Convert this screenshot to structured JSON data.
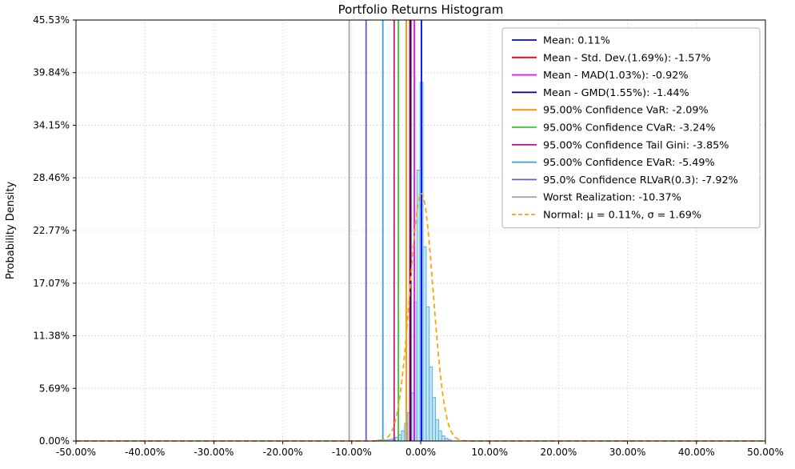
{
  "chart_data": {
    "type": "bar",
    "title": "Portfolio Returns Histogram",
    "xlabel": "",
    "ylabel": "Probability Density",
    "xlim": [
      -50,
      50
    ],
    "ylim": [
      0,
      45.53
    ],
    "grid": "dotted",
    "legend_position": "upper right",
    "x_ticks": {
      "values": [
        -50,
        -40,
        -30,
        -20,
        -10,
        0,
        10,
        20,
        30,
        40,
        50
      ],
      "labels": [
        "-50.00%",
        "-40.00%",
        "-30.00%",
        "-20.00%",
        "-10.00%",
        "0.00%",
        "10.00%",
        "20.00%",
        "30.00%",
        "40.00%",
        "50.00%"
      ]
    },
    "y_ticks": {
      "values": [
        0.0,
        5.69,
        11.38,
        17.07,
        22.77,
        28.46,
        34.15,
        39.84,
        45.53
      ],
      "labels": [
        "0.00%",
        "5.69%",
        "11.38%",
        "17.07%",
        "22.77%",
        "28.46%",
        "34.15%",
        "39.84%",
        "45.53%"
      ]
    },
    "histogram": {
      "fill_color": "#b5dff2",
      "edge_color": "#5fb4d6",
      "bin_width": 0.45,
      "centers": [
        -6.175,
        -5.725,
        -5.275,
        -4.825,
        -4.375,
        -3.925,
        -3.475,
        -3.025,
        -2.575,
        -2.125,
        -1.675,
        -1.225,
        -0.775,
        -0.325,
        0.125,
        0.575,
        1.025,
        1.475,
        1.925,
        2.375,
        2.825,
        3.275,
        3.725,
        4.175
      ],
      "heights": [
        0.08,
        0.12,
        0.08,
        0.12,
        0.18,
        0.25,
        0.4,
        0.65,
        1.1,
        1.9,
        3.1,
        5.2,
        15.0,
        29.3,
        38.8,
        21.0,
        14.5,
        8.0,
        4.7,
        2.3,
        1.1,
        0.55,
        0.28,
        0.14
      ]
    },
    "vlines": [
      {
        "name": "mean",
        "label": "Mean: 0.11%",
        "x": 0.11,
        "color": "#0000ff"
      },
      {
        "name": "mean-minus-std-dev",
        "label": "Mean - Std. Dev.(1.69%): -1.57%",
        "x": -1.57,
        "color": "#ff0000"
      },
      {
        "name": "mean-minus-mad",
        "label": "Mean - MAD(1.03%): -0.92%",
        "x": -0.92,
        "color": "#ff00ff"
      },
      {
        "name": "mean-minus-gmd",
        "label": "Mean - GMD(1.55%): -1.44%",
        "x": -1.44,
        "color": "#000080"
      },
      {
        "name": "var",
        "label": "95.00% Confidence VaR: -2.09%",
        "x": -2.09,
        "color": "#ff8c00"
      },
      {
        "name": "cvar",
        "label": "95.00% Confidence CVaR: -3.24%",
        "x": -3.24,
        "color": "#32cd32"
      },
      {
        "name": "tail-gini",
        "label": "95.00% Confidence Tail Gini: -3.85%",
        "x": -3.85,
        "color": "#c71585"
      },
      {
        "name": "evar",
        "label": "95.00% Confidence EVaR: -5.49%",
        "x": -5.49,
        "color": "#3e9edb"
      },
      {
        "name": "rlvar",
        "label": "95.0% Confidence RLVaR(0.3): -7.92%",
        "x": -7.92,
        "color": "#6a5acd"
      },
      {
        "name": "worst-realization",
        "label": "Worst Realization: -10.37%",
        "x": -10.37,
        "color": "#a6a6a6"
      }
    ],
    "normal_curve": {
      "name": "normal-fit",
      "label": "Normal: μ = 0.11%, σ = 1.69%",
      "mu": 0.11,
      "sigma": 1.69,
      "peak": 26.8,
      "color": "#ffa500",
      "dash": true
    }
  }
}
